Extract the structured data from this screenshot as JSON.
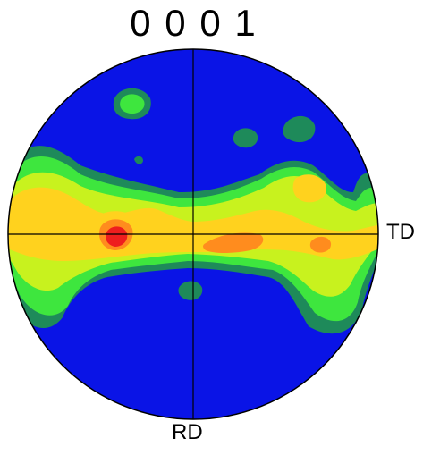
{
  "figure": {
    "pole_title": "0 0 0 1",
    "axis_right_label": "TD",
    "axis_bottom_label": "RD"
  },
  "colors": {
    "background_level": "#0a14e6",
    "level_1": "#1e8a5a",
    "level_2": "#3ee63e",
    "level_3": "#c8f21e",
    "level_4": "#ffd21e",
    "level_5": "#ff8c1e",
    "level_6": "#ee1e1e",
    "outline": "#000000"
  }
}
